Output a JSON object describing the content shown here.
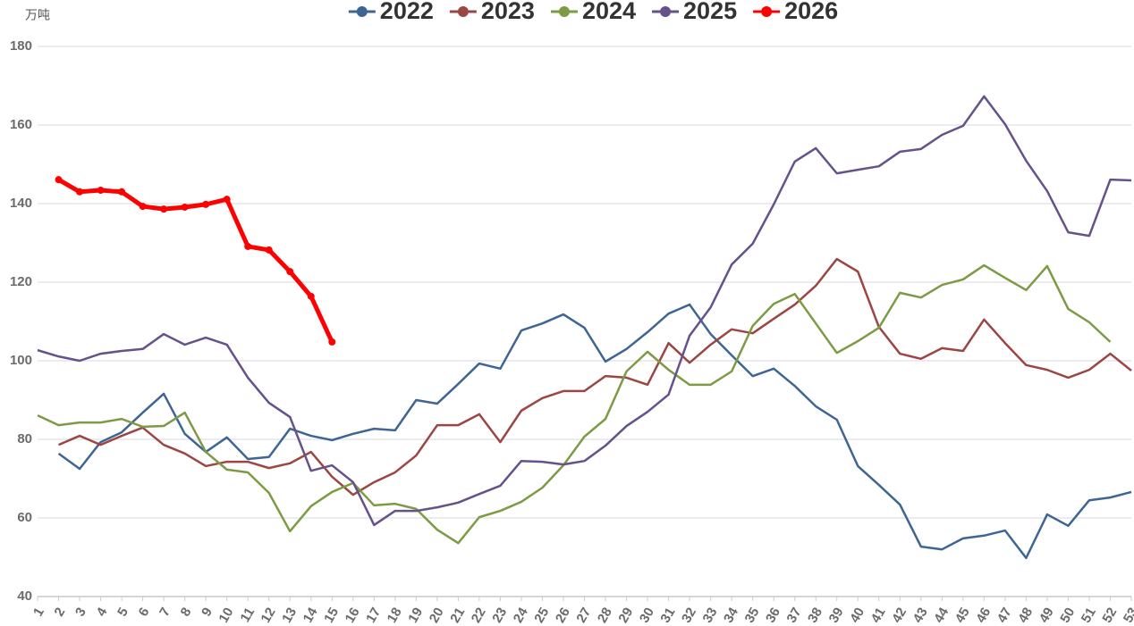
{
  "chart_data": {
    "type": "line",
    "y_label": "万吨",
    "categories": [
      "1",
      "2",
      "3",
      "4",
      "5",
      "6",
      "7",
      "8",
      "9",
      "10",
      "11",
      "12",
      "13",
      "14",
      "15",
      "16",
      "17",
      "18",
      "19",
      "20",
      "21",
      "22",
      "23",
      "24",
      "25",
      "26",
      "27",
      "28",
      "29",
      "30",
      "31",
      "32",
      "33",
      "34",
      "35",
      "36",
      "37",
      "38",
      "39",
      "40",
      "41",
      "42",
      "43",
      "44",
      "45",
      "46",
      "47",
      "48",
      "49",
      "50",
      "51",
      "52",
      "53"
    ],
    "ylim": [
      40,
      180
    ],
    "yticks": [
      40,
      60,
      80,
      100,
      120,
      140,
      160,
      180
    ],
    "grid": true,
    "legend": "top",
    "series": [
      {
        "name": "2022",
        "color": "#3f6594",
        "values": [
          null,
          76.4,
          72.5,
          79.3,
          81.8,
          86.8,
          91.6,
          81.4,
          76.8,
          80.5,
          75,
          75.5,
          82.7,
          80.9,
          79.8,
          81.4,
          82.7,
          82.3,
          90,
          89.1,
          94.1,
          99.3,
          98,
          107.7,
          109.5,
          111.8,
          108.4,
          99.8,
          103,
          107.3,
          112,
          114.3,
          106.8,
          101.4,
          96.1,
          98,
          93.6,
          88.4,
          85,
          73.2,
          68.4,
          63.4,
          52.7,
          52,
          54.8,
          55.5,
          56.8,
          49.8,
          60.9,
          58,
          64.5,
          65.2,
          66.6
        ]
      },
      {
        "name": "2023",
        "color": "#9c4644",
        "values": [
          null,
          78.6,
          80.9,
          78.6,
          80.9,
          83,
          78.6,
          76.4,
          73.2,
          74.3,
          74.3,
          72.7,
          73.9,
          76.8,
          70.5,
          65.9,
          69.1,
          71.6,
          75.9,
          83.6,
          83.6,
          86.4,
          79.3,
          87.3,
          90.5,
          92.3,
          92.3,
          96.1,
          95.7,
          93.9,
          104.5,
          99.5,
          104.1,
          108,
          107,
          110.7,
          114.3,
          119.1,
          125.9,
          122.7,
          108.6,
          101.8,
          100.5,
          103.2,
          102.5,
          110.5,
          104.5,
          98.9,
          97.7,
          95.7,
          97.7,
          101.8,
          97.5
        ]
      },
      {
        "name": "2024",
        "color": "#7d9a45",
        "values": [
          86.1,
          83.6,
          84.3,
          84.3,
          85.2,
          83.2,
          83.4,
          86.8,
          76.8,
          72.3,
          71.6,
          66.4,
          56.6,
          63,
          66.6,
          68.9,
          63.2,
          63.6,
          62.3,
          57,
          53.6,
          60.2,
          61.8,
          64.1,
          67.7,
          73.4,
          80.7,
          85.2,
          97.3,
          102.3,
          97.7,
          93.9,
          93.9,
          97.3,
          108.9,
          114.5,
          117,
          109.5,
          102,
          105,
          108.4,
          117.3,
          116.1,
          119.3,
          120.7,
          124.3,
          121.1,
          118,
          124.1,
          113.2,
          109.8,
          104.8,
          null
        ]
      },
      {
        "name": "2025",
        "color": "#65528a",
        "values": [
          102.7,
          101.1,
          100,
          101.8,
          102.5,
          103,
          106.8,
          104.1,
          105.9,
          104.1,
          95.7,
          89.3,
          85.7,
          72,
          73.4,
          69.1,
          58.2,
          61.8,
          61.8,
          62.7,
          63.9,
          66.1,
          68.2,
          74.5,
          74.3,
          73.6,
          74.5,
          78.4,
          83.4,
          87,
          91.4,
          106.4,
          113.6,
          124.5,
          129.8,
          139.8,
          150.7,
          154.1,
          147.7,
          148.6,
          149.5,
          153.2,
          153.9,
          157.5,
          159.8,
          167.3,
          160.2,
          150.9,
          143.2,
          132.7,
          131.8,
          146.1,
          145.9
        ]
      },
      {
        "name": "2026",
        "color": "#ff0000",
        "values": [
          null,
          146.1,
          143,
          143.4,
          143,
          139.3,
          138.6,
          139.1,
          139.8,
          141.1,
          129.1,
          128.2,
          122.7,
          116.4,
          104.8,
          null,
          null,
          null,
          null,
          null,
          null,
          null,
          null,
          null,
          null,
          null,
          null,
          null,
          null,
          null,
          null,
          null,
          null,
          null,
          null,
          null,
          null,
          null,
          null,
          null,
          null,
          null,
          null,
          null,
          null,
          null,
          null,
          null,
          null,
          null,
          null,
          null,
          null
        ]
      }
    ]
  }
}
